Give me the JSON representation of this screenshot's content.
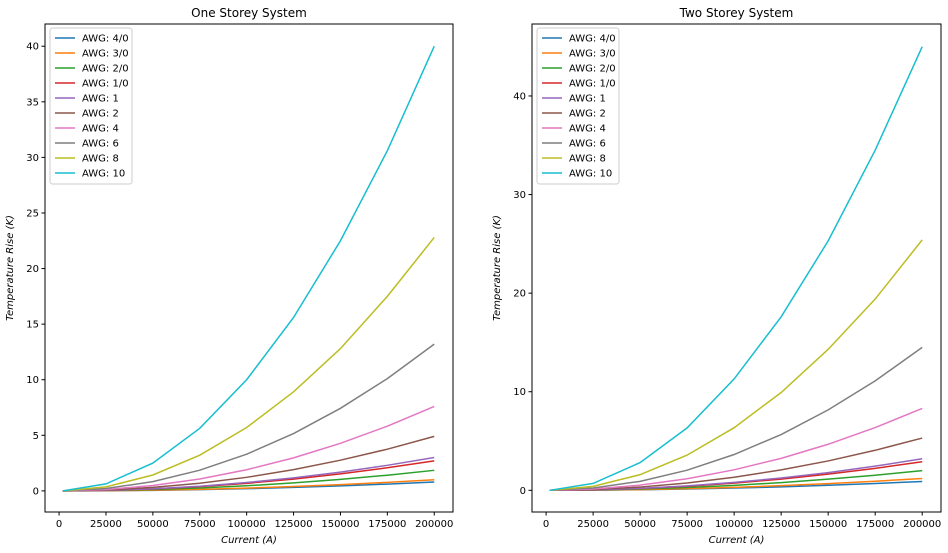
{
  "chart_data": [
    {
      "type": "line",
      "title": "One Storey System",
      "xlabel": "Current (A)",
      "ylabel": "Temperature Rise (K)",
      "xlim": [
        -7500,
        210000
      ],
      "ylim": [
        -1.9,
        42
      ],
      "xticks": [
        0,
        25000,
        50000,
        75000,
        100000,
        125000,
        150000,
        175000,
        200000
      ],
      "yticks": [
        0,
        5,
        10,
        15,
        20,
        25,
        30,
        35,
        40
      ],
      "legend": "top-left",
      "grid": false,
      "x": [
        2000,
        25000,
        50000,
        75000,
        100000,
        125000,
        150000,
        175000,
        200000
      ],
      "series": [
        {
          "name": "AWG: 4/0",
          "color": "#1f77b4",
          "values": [
            0.0,
            0.013,
            0.05,
            0.11,
            0.2,
            0.31,
            0.45,
            0.61,
            0.8
          ]
        },
        {
          "name": "AWG: 3/0",
          "color": "#ff7f0e",
          "values": [
            0.0,
            0.016,
            0.063,
            0.14,
            0.25,
            0.39,
            0.56,
            0.77,
            1.0
          ]
        },
        {
          "name": "AWG: 2/0",
          "color": "#2ca02c",
          "values": [
            0.0,
            0.029,
            0.12,
            0.26,
            0.46,
            0.72,
            1.04,
            1.41,
            1.85
          ]
        },
        {
          "name": "AWG: 1/0",
          "color": "#d62728",
          "values": [
            0.0,
            0.042,
            0.17,
            0.38,
            0.68,
            1.06,
            1.53,
            2.08,
            2.7
          ]
        },
        {
          "name": "AWG: 1",
          "color": "#9467bd",
          "values": [
            0.0,
            0.047,
            0.19,
            0.42,
            0.75,
            1.17,
            1.69,
            2.3,
            3.0
          ]
        },
        {
          "name": "AWG: 2",
          "color": "#8c564b",
          "values": [
            0.0,
            0.077,
            0.31,
            0.69,
            1.22,
            1.91,
            2.76,
            3.75,
            4.9
          ]
        },
        {
          "name": "AWG: 4",
          "color": "#e377c2",
          "values": [
            0.0,
            0.12,
            0.48,
            1.07,
            1.9,
            2.97,
            4.28,
            5.82,
            7.6
          ]
        },
        {
          "name": "AWG: 6",
          "color": "#7f7f7f",
          "values": [
            0.0,
            0.21,
            0.83,
            1.86,
            3.3,
            5.16,
            7.43,
            10.1,
            13.2
          ]
        },
        {
          "name": "AWG: 8",
          "color": "#bcbd22",
          "values": [
            0.0,
            0.36,
            1.43,
            3.21,
            5.7,
            8.91,
            12.8,
            17.5,
            22.8
          ]
        },
        {
          "name": "AWG: 10",
          "color": "#17becf",
          "values": [
            0.0,
            0.63,
            2.5,
            5.63,
            10.0,
            15.6,
            22.5,
            30.6,
            40.0
          ]
        }
      ]
    },
    {
      "type": "line",
      "title": "Two Storey System",
      "xlabel": "Current (A)",
      "ylabel": "Temperature Rise (K)",
      "xlim": [
        -7500,
        210000
      ],
      "ylim": [
        -2.2,
        47.3
      ],
      "xticks": [
        0,
        25000,
        50000,
        75000,
        100000,
        125000,
        150000,
        175000,
        200000
      ],
      "yticks": [
        0,
        10,
        20,
        30,
        40
      ],
      "legend": "top-left",
      "grid": false,
      "x": [
        2000,
        25000,
        50000,
        75000,
        100000,
        125000,
        150000,
        175000,
        200000
      ],
      "series": [
        {
          "name": "AWG: 4/0",
          "color": "#1f77b4",
          "values": [
            0.0,
            0.014,
            0.056,
            0.13,
            0.23,
            0.35,
            0.51,
            0.69,
            0.9
          ]
        },
        {
          "name": "AWG: 3/0",
          "color": "#ff7f0e",
          "values": [
            0.0,
            0.019,
            0.075,
            0.17,
            0.3,
            0.47,
            0.68,
            0.92,
            1.2
          ]
        },
        {
          "name": "AWG: 2/0",
          "color": "#2ca02c",
          "values": [
            0.0,
            0.031,
            0.13,
            0.28,
            0.5,
            0.78,
            1.13,
            1.53,
            2.0
          ]
        },
        {
          "name": "AWG: 1/0",
          "color": "#d62728",
          "values": [
            0.0,
            0.045,
            0.18,
            0.41,
            0.73,
            1.14,
            1.64,
            2.23,
            2.9
          ]
        },
        {
          "name": "AWG: 1",
          "color": "#9467bd",
          "values": [
            0.0,
            0.05,
            0.2,
            0.45,
            0.8,
            1.25,
            1.8,
            2.45,
            3.2
          ]
        },
        {
          "name": "AWG: 2",
          "color": "#8c564b",
          "values": [
            0.0,
            0.083,
            0.33,
            0.74,
            1.33,
            2.07,
            2.98,
            4.06,
            5.3
          ]
        },
        {
          "name": "AWG: 4",
          "color": "#e377c2",
          "values": [
            0.0,
            0.13,
            0.52,
            1.17,
            2.08,
            3.24,
            4.67,
            6.36,
            8.3
          ]
        },
        {
          "name": "AWG: 6",
          "color": "#7f7f7f",
          "values": [
            0.0,
            0.23,
            0.91,
            2.04,
            3.63,
            5.66,
            8.16,
            11.1,
            14.5
          ]
        },
        {
          "name": "AWG: 8",
          "color": "#bcbd22",
          "values": [
            0.0,
            0.4,
            1.59,
            3.57,
            6.35,
            9.92,
            14.3,
            19.4,
            25.4
          ]
        },
        {
          "name": "AWG: 10",
          "color": "#17becf",
          "values": [
            0.0,
            0.7,
            2.81,
            6.33,
            11.3,
            17.6,
            25.3,
            34.5,
            45.0
          ]
        }
      ]
    }
  ]
}
